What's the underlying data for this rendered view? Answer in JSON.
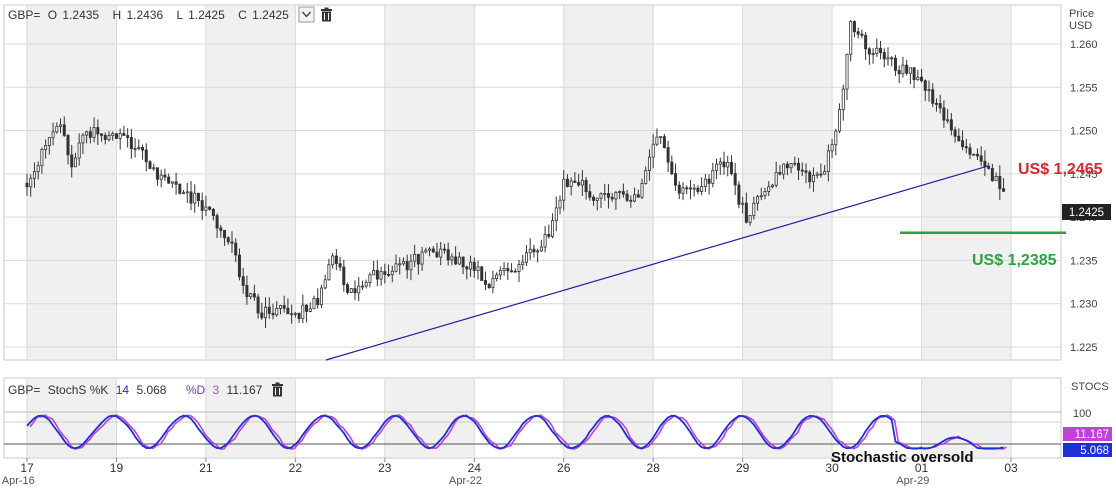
{
  "chart_data": [
    {
      "type": "candlestick",
      "symbol": "GBP=",
      "header": {
        "symbol": "GBP=",
        "open_label": "O",
        "open": "1.2435",
        "high_label": "H",
        "high": "1.2436",
        "low_label": "L",
        "low": "1.2425",
        "close_label": "C",
        "close": "1.2425"
      },
      "ylabel_line1": "Price",
      "ylabel_line2": "USD",
      "ylim": [
        1.2235,
        1.2645
      ],
      "yticks": [
        "1.225",
        "1.230",
        "1.235",
        "1.240",
        "1.245",
        "1.250",
        "1.255",
        "1.260"
      ],
      "last_price_label": "1.2425",
      "grid": true,
      "annotations": [
        {
          "text": "US$ 1,2465",
          "price": 1.2465,
          "color": "#d9262c"
        },
        {
          "text": "US$ 1,2385",
          "price": 1.2385,
          "color": "#2ca340"
        }
      ],
      "support_trendline": [
        {
          "x": "Apr 22 00:00",
          "price": 1.2235
        },
        {
          "x": "May 03 12:00",
          "price": 1.2465
        }
      ],
      "green_level": {
        "price": 1.2382,
        "from": "May 01 00:00"
      },
      "anchors": [
        {
          "t": 0,
          "price": 1.2435
        },
        {
          "t": 6,
          "price": 1.249
        },
        {
          "t": 9,
          "price": 1.251
        },
        {
          "t": 12,
          "price": 1.246
        },
        {
          "t": 15,
          "price": 1.249
        },
        {
          "t": 18,
          "price": 1.25
        },
        {
          "t": 21,
          "price": 1.249
        },
        {
          "t": 25,
          "price": 1.249
        },
        {
          "t": 30,
          "price": 1.248
        },
        {
          "t": 35,
          "price": 1.245
        },
        {
          "t": 40,
          "price": 1.243
        },
        {
          "t": 45,
          "price": 1.242
        },
        {
          "t": 50,
          "price": 1.24
        },
        {
          "t": 55,
          "price": 1.237
        },
        {
          "t": 58,
          "price": 1.232
        },
        {
          "t": 63,
          "price": 1.229
        },
        {
          "t": 68,
          "price": 1.2295
        },
        {
          "t": 73,
          "price": 1.229
        },
        {
          "t": 78,
          "price": 1.2305
        },
        {
          "t": 82,
          "price": 1.236
        },
        {
          "t": 86,
          "price": 1.231
        },
        {
          "t": 92,
          "price": 1.233
        },
        {
          "t": 98,
          "price": 1.234
        },
        {
          "t": 104,
          "price": 1.235
        },
        {
          "t": 110,
          "price": 1.236
        },
        {
          "t": 116,
          "price": 1.235
        },
        {
          "t": 120,
          "price": 1.234
        },
        {
          "t": 124,
          "price": 1.232
        },
        {
          "t": 128,
          "price": 1.234
        },
        {
          "t": 132,
          "price": 1.234
        },
        {
          "t": 136,
          "price": 1.2365
        },
        {
          "t": 140,
          "price": 1.238
        },
        {
          "t": 144,
          "price": 1.244
        },
        {
          "t": 148,
          "price": 1.244
        },
        {
          "t": 152,
          "price": 1.242
        },
        {
          "t": 156,
          "price": 1.243
        },
        {
          "t": 160,
          "price": 1.2425
        },
        {
          "t": 164,
          "price": 1.242
        },
        {
          "t": 167,
          "price": 1.247
        },
        {
          "t": 170,
          "price": 1.25
        },
        {
          "t": 174,
          "price": 1.243
        },
        {
          "t": 178,
          "price": 1.2425
        },
        {
          "t": 183,
          "price": 1.244
        },
        {
          "t": 186,
          "price": 1.247
        },
        {
          "t": 189,
          "price": 1.245
        },
        {
          "t": 193,
          "price": 1.2395
        },
        {
          "t": 197,
          "price": 1.2425
        },
        {
          "t": 201,
          "price": 1.2445
        },
        {
          "t": 205,
          "price": 1.247
        },
        {
          "t": 209,
          "price": 1.2445
        },
        {
          "t": 214,
          "price": 1.246
        },
        {
          "t": 217,
          "price": 1.25
        },
        {
          "t": 219,
          "price": 1.254
        },
        {
          "t": 221,
          "price": 1.2625
        },
        {
          "t": 225,
          "price": 1.26
        },
        {
          "t": 229,
          "price": 1.2585
        },
        {
          "t": 233,
          "price": 1.2575
        },
        {
          "t": 237,
          "price": 1.2565
        },
        {
          "t": 241,
          "price": 1.255
        },
        {
          "t": 245,
          "price": 1.2525
        },
        {
          "t": 249,
          "price": 1.2495
        },
        {
          "t": 252,
          "price": 1.2485
        },
        {
          "t": 255,
          "price": 1.2465
        },
        {
          "t": 258,
          "price": 1.2455
        },
        {
          "t": 262,
          "price": 1.2425
        }
      ]
    },
    {
      "type": "line",
      "indicator": "StochS",
      "header": {
        "symbol": "GBP=",
        "k_label": "StochS %K",
        "k_period": "14",
        "k_value": "5.068",
        "d_label": "%D",
        "d_period": "3",
        "d_value": "11.167"
      },
      "ylabel": "STOCS",
      "ytick": "100",
      "d_value_label": "11.167",
      "k_value_label": "5.068",
      "series": [
        {
          "name": "%K",
          "color": "#1d2fd6"
        },
        {
          "name": "%D",
          "color": "#c042d8"
        }
      ],
      "annotation": "Stochastic oversold"
    }
  ],
  "x_axis": {
    "day_labels": [
      {
        "text": "17",
        "t": 0
      },
      {
        "text": "19",
        "t": 24
      },
      {
        "text": "21",
        "t": 48
      },
      {
        "text": "22",
        "t": 72
      },
      {
        "text": "23",
        "t": 96
      },
      {
        "text": "24",
        "t": 120
      },
      {
        "text": "26",
        "t": 144
      },
      {
        "text": "28",
        "t": 168
      },
      {
        "text": "29",
        "t": 192
      },
      {
        "text": "30",
        "t": 216
      },
      {
        "text": "01",
        "t": 240
      },
      {
        "text": "03",
        "t": 264
      }
    ],
    "month_labels": [
      {
        "text": "Apr-16",
        "t": -12
      },
      {
        "text": "Apr-22",
        "t": 108
      },
      {
        "text": "Apr-29",
        "t": 228
      }
    ]
  },
  "colors": {
    "plot_bg": "#f0f0f0",
    "plot_bg_alt": "#ffffff",
    "grid": "#d9d9d9",
    "candle_body": "#333333",
    "trendline": "#2020a0",
    "price_badge": "#222222",
    "k_badge": "#1d2fd6",
    "d_badge": "#c042d8"
  }
}
